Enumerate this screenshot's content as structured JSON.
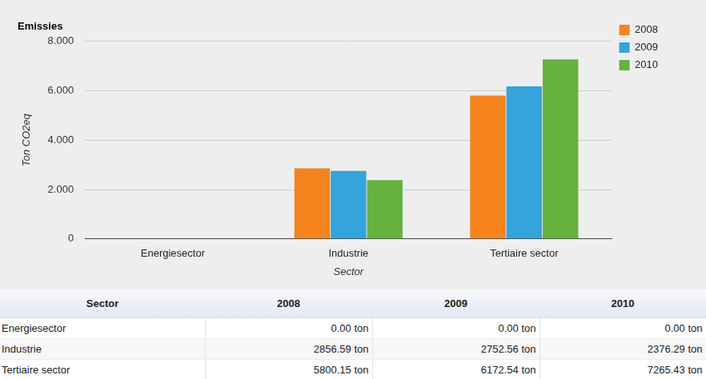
{
  "chart_data": {
    "type": "bar",
    "title": "Emissies",
    "x_label": "Sector",
    "y_label": "Ton CO2eq",
    "categories": [
      "Energiesector",
      "Industrie",
      "Tertiaire sector"
    ],
    "series": [
      {
        "name": "2008",
        "color": "#f5841f",
        "values": [
          0,
          2856.59,
          5800.15
        ]
      },
      {
        "name": "2009",
        "color": "#35a4dc",
        "values": [
          0,
          2752.56,
          6172.54
        ]
      },
      {
        "name": "2010",
        "color": "#67b13f",
        "values": [
          0,
          2376.29,
          7265.43
        ]
      }
    ],
    "ylim": [
      0,
      8000
    ],
    "yticks": [
      0,
      {
        "value": 2000,
        "label": "2.000"
      },
      {
        "value": 4000,
        "label": "4.000"
      },
      {
        "value": 6000,
        "label": "6.000"
      },
      {
        "value": 8000,
        "label": "8.000"
      }
    ],
    "grid": true,
    "legend": "top-right"
  },
  "table": {
    "header": [
      "Sector",
      "2008",
      "2009",
      "2010"
    ],
    "rows": [
      [
        "Energiesector",
        "0.00 ton",
        "0.00 ton",
        "0.00 ton"
      ],
      [
        "Industrie",
        "2856.59 ton",
        "2752.56 ton",
        "2376.29 ton"
      ],
      [
        "Tertiaire sector",
        "5800.15 ton",
        "6172.54 ton",
        "7265.43 ton"
      ]
    ]
  }
}
